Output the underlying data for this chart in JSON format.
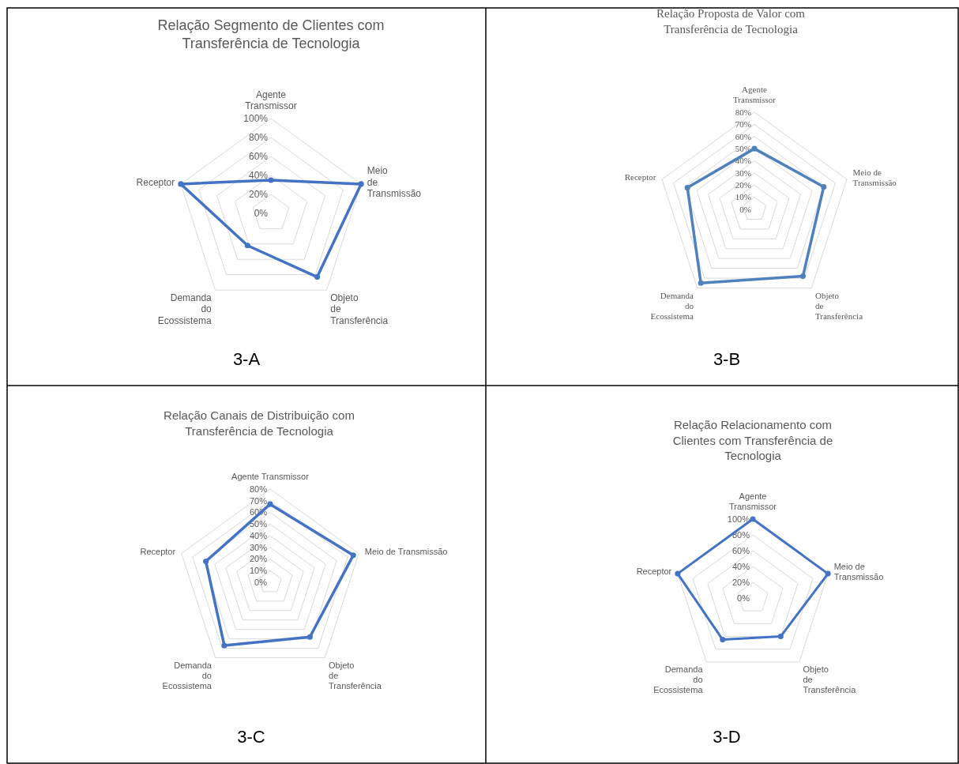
{
  "chart_data": [
    {
      "type": "radar",
      "title": "Relação Segmento de Clientes com Transferência de Tecnologia",
      "categories": [
        "Agente Transmissor",
        "Meio de Transmissão",
        "Objeto de Transferência",
        "Demanda do Ecossistema",
        "Receptor"
      ],
      "series": [
        {
          "color": "#4472c4",
          "values": [
            35,
            100,
            83,
            42,
            100
          ]
        }
      ],
      "ylim": [
        0,
        100
      ],
      "yticks": [
        {
          "value": 0,
          "label": "0%"
        },
        {
          "value": 20,
          "label": "20%"
        },
        {
          "value": 40,
          "label": "40%"
        },
        {
          "value": 60,
          "label": "60%"
        },
        {
          "value": 80,
          "label": "80%"
        },
        {
          "value": 100,
          "label": "100%"
        }
      ],
      "grid": true,
      "marker": "circle",
      "annotations": [
        "3-A"
      ]
    },
    {
      "type": "radar",
      "title": "Relação Proposta de Valor com Transferência de Tecnologia",
      "categories": [
        "Agente Transmissor",
        "Meio de Transmissão",
        "Objeto de Transferência",
        "Demanda do Ecossistema",
        "Receptor"
      ],
      "series": [
        {
          "color": "#4f81bd",
          "values": [
            50,
            60,
            68,
            75,
            58
          ]
        }
      ],
      "ylim": [
        0,
        80
      ],
      "yticks": [
        {
          "value": 0,
          "label": "0%"
        },
        {
          "value": 10,
          "label": "10%"
        },
        {
          "value": 20,
          "label": "20%"
        },
        {
          "value": 30,
          "label": "30%"
        },
        {
          "value": 40,
          "label": "40%"
        },
        {
          "value": 50,
          "label": "50%"
        },
        {
          "value": 60,
          "label": "60%"
        },
        {
          "value": 70,
          "label": "70%"
        },
        {
          "value": 80,
          "label": "80%"
        }
      ],
      "grid": true,
      "marker": "circle",
      "annotations": [
        "3-B"
      ]
    },
    {
      "type": "radar",
      "title": "Relação Canais de Distribuição com Transferência de Tecnologia",
      "categories": [
        "Agente Transmissor",
        "Meio de Transmissão",
        "Objeto de Transferência",
        "Demanda do Ecossistema",
        "Receptor"
      ],
      "series": [
        {
          "color": "#4472c4",
          "values": [
            67,
            75,
            58,
            67,
            58
          ]
        }
      ],
      "ylim": [
        0,
        80
      ],
      "yticks": [
        {
          "value": 0,
          "label": "0%"
        },
        {
          "value": 10,
          "label": "10%"
        },
        {
          "value": 20,
          "label": "20%"
        },
        {
          "value": 30,
          "label": "30%"
        },
        {
          "value": 40,
          "label": "40%"
        },
        {
          "value": 50,
          "label": "50%"
        },
        {
          "value": 60,
          "label": "60%"
        },
        {
          "value": 70,
          "label": "70%"
        },
        {
          "value": 80,
          "label": "80%"
        }
      ],
      "grid": true,
      "marker": "circle",
      "annotations": [
        "3-C"
      ]
    },
    {
      "type": "radar",
      "title": "Relação Relacionamento com Clientes com Transferência de Tecnologia",
      "categories": [
        "Agente Transmissor",
        "Meio de Transmissão",
        "Objeto de Transferência",
        "Demanda do Ecossistema",
        "Receptor"
      ],
      "series": [
        {
          "color": "#4472c4",
          "values": [
            100,
            100,
            60,
            65,
            100
          ]
        }
      ],
      "ylim": [
        0,
        100
      ],
      "yticks": [
        {
          "value": 0,
          "label": "0%"
        },
        {
          "value": 20,
          "label": "20%"
        },
        {
          "value": 40,
          "label": "40%"
        },
        {
          "value": 60,
          "label": "60%"
        },
        {
          "value": 80,
          "label": "80%"
        },
        {
          "value": 100,
          "label": "100%"
        }
      ],
      "grid": true,
      "marker": "circle",
      "annotations": [
        "3-D"
      ]
    }
  ]
}
